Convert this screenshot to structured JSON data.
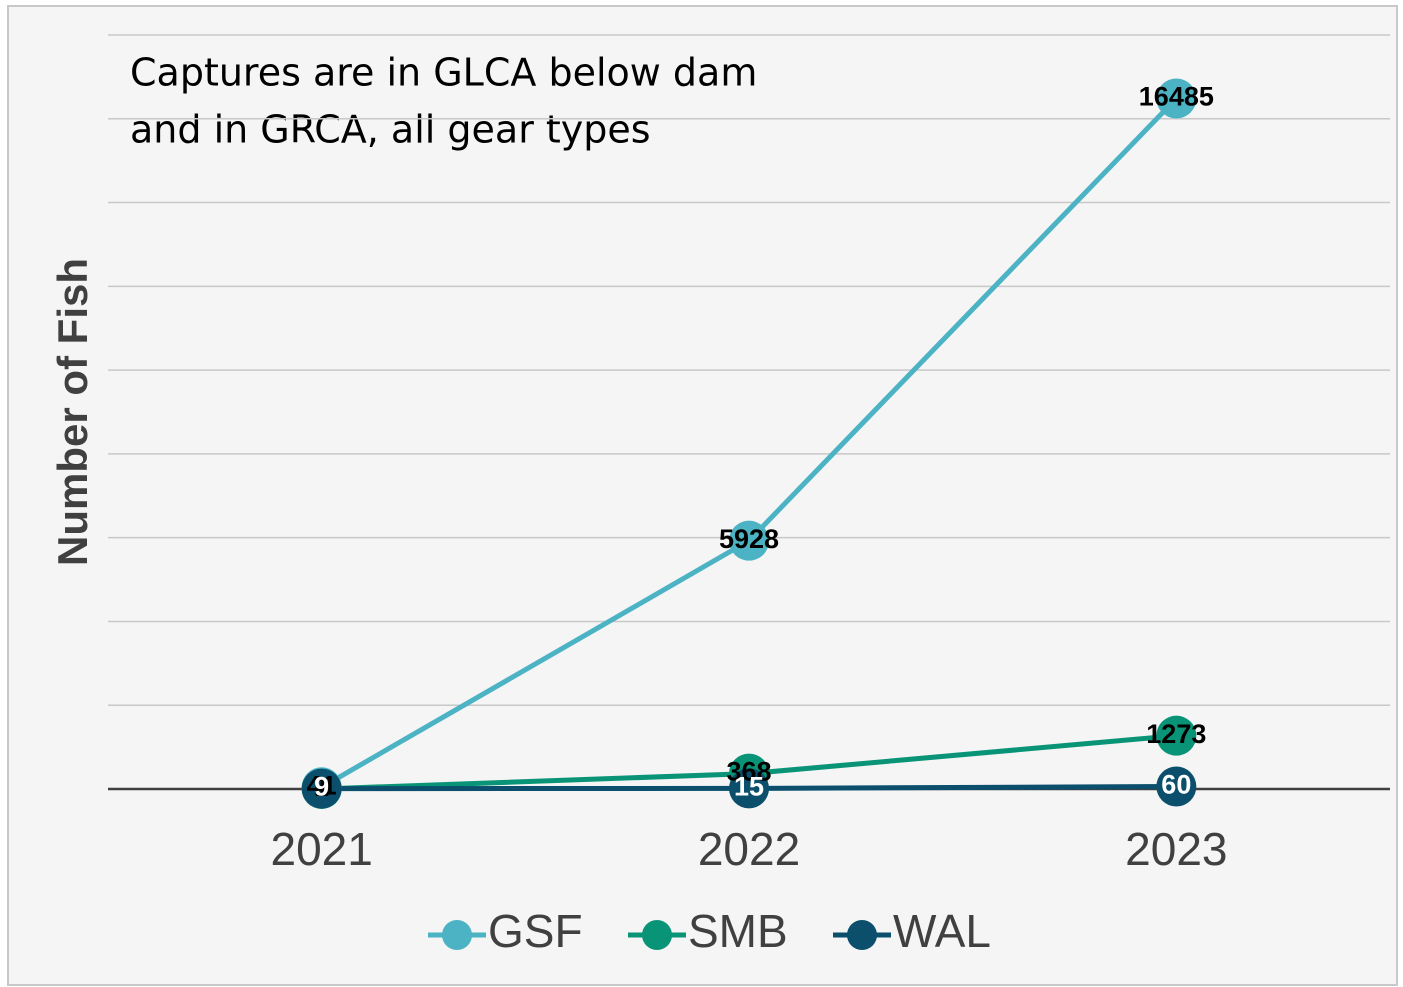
{
  "chart_data": {
    "type": "line",
    "y_label": "Number of Fish",
    "annotation": [
      "Captures are in GLCA below dam",
      "and in GRCA, all gear types"
    ],
    "categories": [
      "2021",
      "2022",
      "2023"
    ],
    "series": [
      {
        "name": "GSF",
        "color": "#4bb3c4",
        "label_color": "#000000",
        "values": [
          41,
          5928,
          16485
        ]
      },
      {
        "name": "SMB",
        "color": "#0a9477",
        "label_color": "#000000",
        "values": [
          1,
          368,
          1273
        ]
      },
      {
        "name": "WAL",
        "color": "#0b4f6c",
        "label_color": "#ffffff",
        "values": [
          9,
          15,
          60
        ]
      }
    ],
    "ylim": [
      0,
      18000
    ],
    "yticks": [
      0,
      2000,
      4000,
      6000,
      8000,
      10000,
      12000,
      14000,
      16000,
      18000
    ],
    "grid": true
  }
}
